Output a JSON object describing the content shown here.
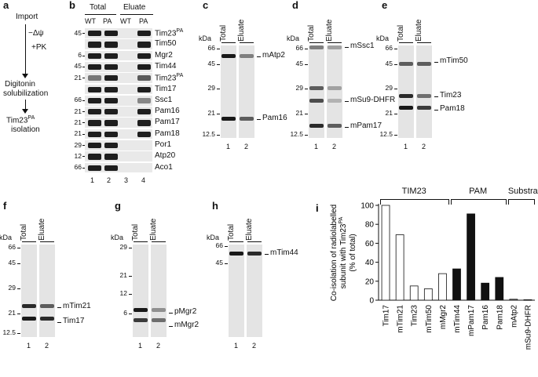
{
  "panels": {
    "a": {
      "label": "a",
      "steps": [
        "Import",
        "−Δψ",
        "+PK",
        "Digitonin",
        "solubilization",
        "Tim23",
        "isolation"
      ],
      "sup": "PA"
    },
    "b": {
      "label": "b",
      "headers": [
        "Total",
        "Eluate"
      ],
      "lanes": [
        "WT",
        "PA",
        "WT",
        "PA"
      ],
      "lane_numbers": [
        "1",
        "2",
        "3",
        "4"
      ],
      "rows": [
        {
          "kda": "45",
          "protein": "Tim23",
          "sup": "PA"
        },
        {
          "kda": "",
          "protein": "Tim50",
          "sup": ""
        },
        {
          "kda": "6",
          "protein": "Mgr2",
          "sup": ""
        },
        {
          "kda": "45",
          "protein": "Tim44",
          "sup": ""
        },
        {
          "kda": "21",
          "protein": "Tim23",
          "sup": "PA"
        },
        {
          "kda": "",
          "protein": "Tim17",
          "sup": ""
        },
        {
          "kda": "66",
          "protein": "Ssc1",
          "sup": ""
        },
        {
          "kda": "21",
          "protein": "Pam16",
          "sup": ""
        },
        {
          "kda": "21",
          "protein": "Pam17",
          "sup": ""
        },
        {
          "kda": "21",
          "protein": "Pam18",
          "sup": ""
        },
        {
          "kda": "29",
          "protein": "Por1",
          "sup": ""
        },
        {
          "kda": "12",
          "protein": "Atp20",
          "sup": ""
        },
        {
          "kda": "66",
          "protein": "Aco1",
          "sup": ""
        }
      ]
    },
    "c": {
      "label": "c",
      "kda": "kDa",
      "lanes": [
        "Total",
        "Eluate"
      ],
      "lane_numbers": [
        "1",
        "2"
      ],
      "markers": [
        "66",
        "45",
        "29",
        "21",
        "12.5"
      ],
      "bands": [
        "mAtp2",
        "Pam16"
      ]
    },
    "d": {
      "label": "d",
      "kda": "kDa",
      "lanes": [
        "Total",
        "Eluate"
      ],
      "lane_numbers": [
        "1",
        "2"
      ],
      "markers": [
        "66",
        "45",
        "29",
        "21",
        "12.5"
      ],
      "bands": [
        "mSsc1",
        "mSu9-DHFR",
        "mPam17"
      ]
    },
    "e": {
      "label": "e",
      "kda": "kDa",
      "lanes": [
        "Total",
        "Eluate"
      ],
      "lane_numbers": [
        "1",
        "2"
      ],
      "markers": [
        "66",
        "45",
        "29",
        "21",
        "12.5"
      ],
      "bands": [
        "mTim50",
        "Tim23",
        "Pam18"
      ]
    },
    "f": {
      "label": "f",
      "kda": "kDa",
      "lanes": [
        "Total",
        "Eluate"
      ],
      "lane_numbers": [
        "1",
        "2"
      ],
      "markers": [
        "66",
        "45",
        "29",
        "21",
        "12.5"
      ],
      "bands": [
        "mTim21",
        "Tim17"
      ]
    },
    "g": {
      "label": "g",
      "kda": "kDa",
      "lanes": [
        "Total",
        "Eluate"
      ],
      "lane_numbers": [
        "1",
        "2"
      ],
      "markers": [
        "29",
        "21",
        "12",
        "6"
      ],
      "bands": [
        "pMgr2",
        "mMgr2"
      ]
    },
    "h": {
      "label": "h",
      "kda": "kDa",
      "lanes": [
        "Total",
        "Eluate"
      ],
      "lane_numbers": [
        "1",
        "2"
      ],
      "markers": [
        "66",
        "45"
      ],
      "bands": [
        "mTim44"
      ]
    }
  },
  "chart_data": {
    "type": "bar",
    "panel_label": "i",
    "categories": [
      "Tim17",
      "mTim21",
      "Tim23",
      "mTim50",
      "mMgr2",
      "mTim44",
      "mPam17",
      "Pam16",
      "Pam18",
      "mAtp2",
      "mSu9-DHFR"
    ],
    "values": [
      100,
      69,
      15,
      12,
      28,
      33,
      91,
      18,
      24,
      1,
      0.5
    ],
    "groups": [
      {
        "name": "TIM23",
        "members": [
          "Tim17",
          "mTim21",
          "Tim23",
          "mTim50",
          "mMgr2"
        ],
        "fill": "#ffffff"
      },
      {
        "name": "PAM",
        "members": [
          "mTim44",
          "mPam17",
          "Pam16",
          "Pam18"
        ],
        "fill": "#111111"
      },
      {
        "name": "Substrates",
        "members": [
          "mAtp2",
          "mSu9-DHFR"
        ],
        "fill": "#888888"
      }
    ],
    "ylabel_lines": [
      "Co-isolation of radiolabelled",
      "subunit with Tim23",
      "(% of total)"
    ],
    "ylabel_sup": "PA",
    "ylim": [
      0,
      100
    ],
    "yticks": [
      0,
      20,
      40,
      60,
      80,
      100
    ],
    "grid": false
  }
}
